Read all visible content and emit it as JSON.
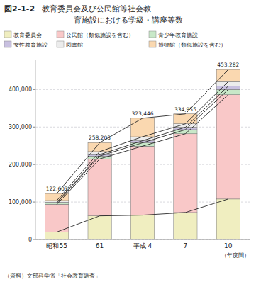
{
  "chart_data": {
    "type": "bar",
    "stacked": true,
    "title": "図2-1-2",
    "subtitle": [
      "教育委員会及び公民館等社会教",
      "育施設における学級・講座等数"
    ],
    "x_label": "（年度間）",
    "source": "（資料）文部科学省「社会教育調査」",
    "categories": [
      "昭和55",
      "61",
      "平成 4",
      "7",
      "10"
    ],
    "series": [
      {
        "name": "教育委員会",
        "color": "#F0EEC0",
        "values": [
          20000,
          63000,
          65000,
          72000,
          108000
        ]
      },
      {
        "name": "公民館（類似施設を含む）",
        "color": "#F9C8C8",
        "values": [
          74000,
          152000,
          184000,
          210000,
          278000
        ]
      },
      {
        "name": "青少年教育施設",
        "color": "#C8E8C8",
        "values": [
          3500,
          7500,
          9000,
          11000,
          14000
        ]
      },
      {
        "name": "女性教育施設",
        "color": "#C8C0E0",
        "values": [
          2000,
          4000,
          5500,
          6500,
          9000
        ]
      },
      {
        "name": "図書館",
        "color": "#ECECEC",
        "values": [
          4500,
          8000,
          10500,
          9000,
          12000
        ]
      },
      {
        "name": "博物館（類似施設を含む）",
        "color": "#FAD8B0",
        "values": [
          18603,
          23703,
          49446,
          26455,
          32282
        ]
      }
    ],
    "totals": [
      {
        "value": 122603,
        "label": "122,603"
      },
      {
        "value": 258203,
        "label": "258,203"
      },
      {
        "value": 323446,
        "label": "323,446"
      },
      {
        "value": 334955,
        "label": "334,955"
      },
      {
        "value": 453282,
        "label": "453,282"
      }
    ],
    "ylim": [
      0,
      480000
    ],
    "yticks": [
      0,
      {
        "value": 100000,
        "label": "100,000"
      },
      {
        "value": 200000,
        "label": "200,000"
      },
      {
        "value": 300000,
        "label": "300,000"
      },
      {
        "value": 400000,
        "label": "400,000"
      }
    ],
    "grid": true,
    "legend": "top"
  }
}
